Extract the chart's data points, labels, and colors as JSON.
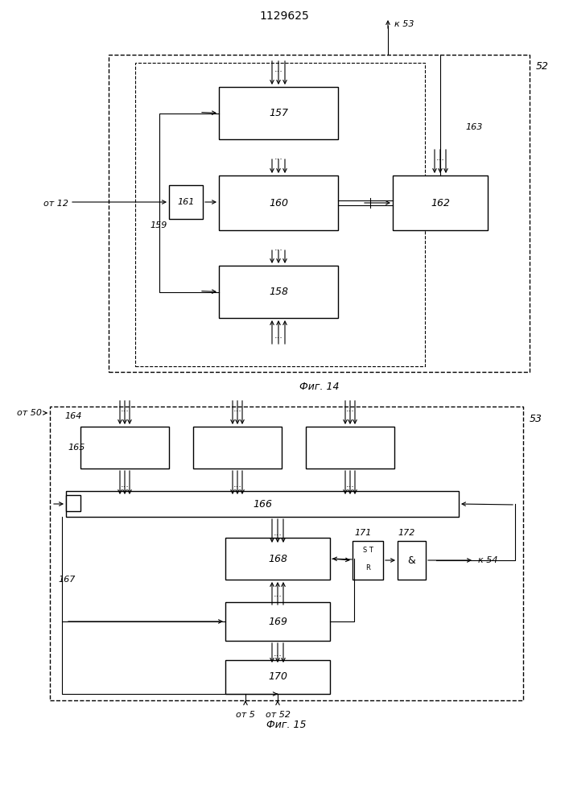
{
  "title": "1129625",
  "fig14_label": "Фиг. 14",
  "fig15_label": "Фиг. 15",
  "bg_color": "#ffffff",
  "line_color": "#000000",
  "box_color": "#ffffff",
  "font_size": 9,
  "label_font_size": 8
}
